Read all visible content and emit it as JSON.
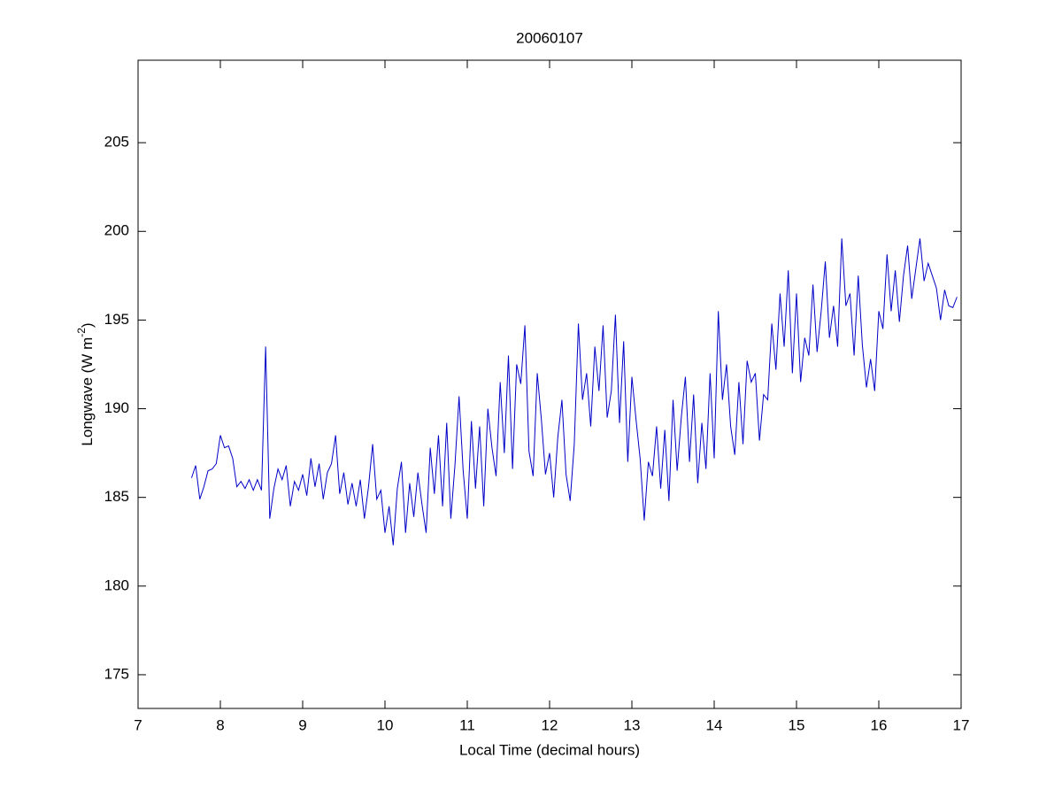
{
  "chart_data": {
    "type": "line",
    "title": "20060107",
    "xlabel": "Local Time (decimal hours)",
    "ylabel": {
      "text": "Longwave (W m",
      "superscript": "-2",
      "suffix": ")"
    },
    "xlim": [
      7,
      17
    ],
    "xticks": [
      7,
      8,
      9,
      10,
      11,
      12,
      13,
      14,
      15,
      16,
      17
    ],
    "ylim": [
      173.1,
      209.65
    ],
    "yticks": [
      175,
      180,
      185,
      190,
      195,
      200,
      205
    ],
    "grid": false,
    "x": [
      7.65,
      7.7,
      7.75,
      7.8,
      7.85,
      7.9,
      7.95,
      8,
      8.05,
      8.1,
      8.15,
      8.2,
      8.25,
      8.3,
      8.35,
      8.4,
      8.45,
      8.5,
      8.55,
      8.6,
      8.65,
      8.7,
      8.75,
      8.8,
      8.85,
      8.9,
      8.95,
      9,
      9.05,
      9.1,
      9.15,
      9.2,
      9.25,
      9.3,
      9.35,
      9.4,
      9.45,
      9.5,
      9.55,
      9.6,
      9.65,
      9.7,
      9.75,
      9.8,
      9.85,
      9.9,
      9.95,
      10,
      10.05,
      10.1,
      10.15,
      10.2,
      10.25,
      10.3,
      10.35,
      10.4,
      10.45,
      10.5,
      10.55,
      10.6,
      10.65,
      10.7,
      10.75,
      10.8,
      10.85,
      10.9,
      10.95,
      11,
      11.05,
      11.1,
      11.15,
      11.2,
      11.25,
      11.3,
      11.35,
      11.4,
      11.45,
      11.5,
      11.55,
      11.6,
      11.65,
      11.7,
      11.75,
      11.8,
      11.85,
      11.9,
      11.95,
      12,
      12.05,
      12.1,
      12.15,
      12.2,
      12.25,
      12.3,
      12.35,
      12.4,
      12.45,
      12.5,
      12.55,
      12.6,
      12.65,
      12.7,
      12.75,
      12.8,
      12.85,
      12.9,
      12.95,
      13,
      13.05,
      13.1,
      13.15,
      13.2,
      13.25,
      13.3,
      13.35,
      13.4,
      13.45,
      13.5,
      13.55,
      13.6,
      13.65,
      13.7,
      13.75,
      13.8,
      13.85,
      13.9,
      13.95,
      14,
      14.05,
      14.1,
      14.15,
      14.2,
      14.25,
      14.3,
      14.35,
      14.4,
      14.45,
      14.5,
      14.55,
      14.6,
      14.65,
      14.7,
      14.75,
      14.8,
      14.85,
      14.9,
      14.95,
      15,
      15.05,
      15.1,
      15.15,
      15.2,
      15.25,
      15.3,
      15.35,
      15.4,
      15.45,
      15.5,
      15.55,
      15.6,
      15.65,
      15.7,
      15.75,
      15.8,
      15.85,
      15.9,
      15.95,
      16,
      16.05,
      16.1,
      16.15,
      16.2,
      16.25,
      16.3,
      16.35,
      16.4,
      16.45,
      16.5,
      16.55,
      16.6,
      16.65,
      16.7,
      16.75,
      16.8,
      16.85,
      16.9,
      16.95
    ],
    "series": [
      {
        "color": "#0000c8",
        "values": [
          186.1,
          186.8,
          184.9,
          185.6,
          186.5,
          186.6,
          186.9,
          188.5,
          187.8,
          187.9,
          187.2,
          185.6,
          185.9,
          185.5,
          186.0,
          185.4,
          186.0,
          185.4,
          193.5,
          183.8,
          185.5,
          186.6,
          186.0,
          186.8,
          184.5,
          185.9,
          185.4,
          186.3,
          185.1,
          187.2,
          185.6,
          186.9,
          184.9,
          186.4,
          186.9,
          188.5,
          185.2,
          186.4,
          184.6,
          185.8,
          184.5,
          186.0,
          183.8,
          185.6,
          188.0,
          184.9,
          185.4,
          183.0,
          184.5,
          182.3,
          185.5,
          187.0,
          183.0,
          185.8,
          183.9,
          186.4,
          184.6,
          183.0,
          187.8,
          185.2,
          188.5,
          184.5,
          189.2,
          183.8,
          186.8,
          190.7,
          186.5,
          183.8,
          189.3,
          185.5,
          189.0,
          184.5,
          190.0,
          187.8,
          186.2,
          191.5,
          187.5,
          193.0,
          186.6,
          192.5,
          191.4,
          194.7,
          187.6,
          186.2,
          192.0,
          189.4,
          186.3,
          187.5,
          185.0,
          188.4,
          190.5,
          186.3,
          184.8,
          188.0,
          194.8,
          190.5,
          192.0,
          189.0,
          193.5,
          191.0,
          194.7,
          189.5,
          191.0,
          195.3,
          189.2,
          193.8,
          187.0,
          191.8,
          189.4,
          187.2,
          183.7,
          187.0,
          186.2,
          189.0,
          185.5,
          188.8,
          184.8,
          190.5,
          186.5,
          189.5,
          191.8,
          187.0,
          190.8,
          185.8,
          189.2,
          186.6,
          192.0,
          187.2,
          195.5,
          190.5,
          192.5,
          189.0,
          187.4,
          191.5,
          188.0,
          192.7,
          191.5,
          192.0,
          188.2,
          190.8,
          190.5,
          194.8,
          192.2,
          196.5,
          193.5,
          197.8,
          192.0,
          196.5,
          191.5,
          194.0,
          193.0,
          197.0,
          193.2,
          195.5,
          198.3,
          194.0,
          195.8,
          193.5,
          199.6,
          195.8,
          196.5,
          193.0,
          197.5,
          193.6,
          191.2,
          192.8,
          191.0,
          195.5,
          194.5,
          198.7,
          195.5,
          197.8,
          194.9,
          197.5,
          199.2,
          196.2,
          197.9,
          199.6,
          197.2,
          198.2,
          197.5,
          196.8,
          195.0,
          196.7,
          195.8,
          195.7,
          196.3
        ]
      }
    ]
  }
}
